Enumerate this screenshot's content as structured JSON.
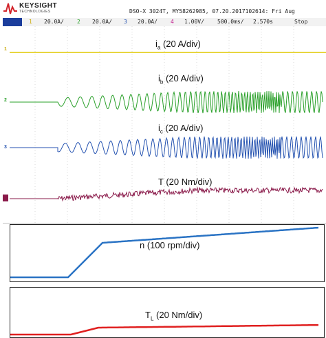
{
  "brand": {
    "name": "KEYSIGHT",
    "subtitle": "TECHNOLOGIES"
  },
  "header": {
    "info": "DSO-X 3024T, MY58262985, 07.20.2017102614: Fri Aug"
  },
  "toolbar": {
    "ch1_num": "1",
    "ch1_scale": "20.0A/",
    "ch2_num": "2",
    "ch2_scale": "20.0A/",
    "ch3_num": "3",
    "ch3_scale": "20.0A/",
    "ch4_num": "4",
    "ch4_scale": "1.00V/",
    "timebase": "500.0ms/",
    "delay": "2.570s",
    "run_state": "Stop"
  },
  "channels": {
    "ch1": {
      "marker": "1",
      "color": "#e0c800",
      "label_main": "i",
      "label_sub": "a",
      "label_rest": " (20 A/div)"
    },
    "ch2": {
      "marker": "2",
      "color": "#2aa02a",
      "label_main": "i",
      "label_sub": "b",
      "label_rest": " (20 A/div)"
    },
    "ch3": {
      "marker": "3",
      "color": "#2452b0",
      "label_main": "i",
      "label_sub": "c",
      "label_rest": " (20 A/div)"
    },
    "ch4": {
      "marker": "4",
      "color": "#8a1a4a",
      "label_main": "T",
      "label_sub": "",
      "label_rest": " (20 Nm/div)"
    }
  },
  "plots": {
    "speed": {
      "label": "n (100 rpm/div)",
      "color": "#2a73c4"
    },
    "load": {
      "label_main": "T",
      "label_sub": "L",
      "label_rest": " (20 Nm/div)",
      "color": "#e02020"
    }
  }
}
